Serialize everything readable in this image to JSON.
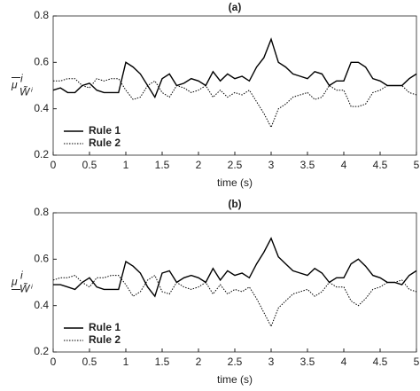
{
  "chart_data": [
    {
      "type": "line",
      "title": "(a)",
      "xlabel": "time (s)",
      "ylabel_symbol": "μ",
      "ylabel_superscript": "i",
      "ylabel_subscript": "W̃ⁱ",
      "ylabel_mark": "overline",
      "x": [
        0,
        0.1,
        0.2,
        0.3,
        0.4,
        0.5,
        0.6,
        0.7,
        0.8,
        0.9,
        1,
        1.1,
        1.2,
        1.3,
        1.4,
        1.5,
        1.6,
        1.7,
        1.8,
        1.9,
        2,
        2.1,
        2.2,
        2.3,
        2.4,
        2.5,
        2.6,
        2.7,
        2.8,
        2.9,
        3,
        3.1,
        3.2,
        3.3,
        3.4,
        3.5,
        3.6,
        3.7,
        3.8,
        3.9,
        4,
        4.1,
        4.2,
        4.3,
        4.4,
        4.5,
        4.6,
        4.7,
        4.8,
        4.9,
        5
      ],
      "series": [
        {
          "name": "Rule 1",
          "color": "#000000",
          "dash": "solid",
          "values": [
            0.48,
            0.49,
            0.47,
            0.47,
            0.5,
            0.51,
            0.48,
            0.47,
            0.47,
            0.47,
            0.6,
            0.58,
            0.55,
            0.5,
            0.45,
            0.53,
            0.55,
            0.5,
            0.51,
            0.53,
            0.52,
            0.5,
            0.56,
            0.52,
            0.55,
            0.53,
            0.54,
            0.52,
            0.58,
            0.62,
            0.7,
            0.6,
            0.58,
            0.55,
            0.54,
            0.53,
            0.56,
            0.55,
            0.5,
            0.52,
            0.52,
            0.6,
            0.6,
            0.58,
            0.53,
            0.52,
            0.5,
            0.5,
            0.5,
            0.53,
            0.55
          ]
        },
        {
          "name": "Rule 2",
          "color": "#000000",
          "dash": "dotted",
          "values": [
            0.52,
            0.52,
            0.53,
            0.53,
            0.5,
            0.49,
            0.53,
            0.52,
            0.53,
            0.53,
            0.48,
            0.44,
            0.45,
            0.5,
            0.52,
            0.47,
            0.45,
            0.5,
            0.49,
            0.47,
            0.48,
            0.5,
            0.45,
            0.48,
            0.45,
            0.47,
            0.46,
            0.48,
            0.43,
            0.38,
            0.32,
            0.4,
            0.42,
            0.45,
            0.46,
            0.47,
            0.44,
            0.45,
            0.5,
            0.48,
            0.48,
            0.41,
            0.41,
            0.42,
            0.47,
            0.48,
            0.5,
            0.5,
            0.5,
            0.47,
            0.46
          ]
        }
      ],
      "xlim": [
        0,
        5
      ],
      "xticks": [
        0,
        0.5,
        1,
        1.5,
        2,
        2.5,
        3,
        3.5,
        4,
        4.5,
        5
      ],
      "ylim": [
        0.2,
        0.8
      ],
      "yticks": [
        0.2,
        0.4,
        0.6,
        0.8
      ],
      "legend": "lower left",
      "grid": false
    },
    {
      "type": "line",
      "title": "(b)",
      "xlabel": "time (s)",
      "ylabel_symbol": "μ",
      "ylabel_superscript": "i",
      "ylabel_subscript": "W̃ⁱ",
      "ylabel_mark": "underline",
      "x": [
        0,
        0.1,
        0.2,
        0.3,
        0.4,
        0.5,
        0.6,
        0.7,
        0.8,
        0.9,
        1,
        1.1,
        1.2,
        1.3,
        1.4,
        1.5,
        1.6,
        1.7,
        1.8,
        1.9,
        2,
        2.1,
        2.2,
        2.3,
        2.4,
        2.5,
        2.6,
        2.7,
        2.8,
        2.9,
        3,
        3.1,
        3.2,
        3.3,
        3.4,
        3.5,
        3.6,
        3.7,
        3.8,
        3.9,
        4,
        4.1,
        4.2,
        4.3,
        4.4,
        4.5,
        4.6,
        4.7,
        4.8,
        4.9,
        5
      ],
      "series": [
        {
          "name": "Rule 1",
          "color": "#000000",
          "dash": "solid",
          "values": [
            0.49,
            0.49,
            0.48,
            0.47,
            0.5,
            0.52,
            0.48,
            0.47,
            0.47,
            0.47,
            0.59,
            0.57,
            0.54,
            0.48,
            0.44,
            0.54,
            0.55,
            0.5,
            0.52,
            0.53,
            0.52,
            0.5,
            0.56,
            0.51,
            0.55,
            0.53,
            0.54,
            0.52,
            0.58,
            0.63,
            0.69,
            0.61,
            0.58,
            0.55,
            0.54,
            0.53,
            0.56,
            0.54,
            0.5,
            0.52,
            0.52,
            0.58,
            0.6,
            0.57,
            0.53,
            0.52,
            0.5,
            0.5,
            0.49,
            0.53,
            0.55
          ]
        },
        {
          "name": "Rule 2",
          "color": "#000000",
          "dash": "dotted",
          "values": [
            0.51,
            0.52,
            0.52,
            0.53,
            0.5,
            0.48,
            0.52,
            0.52,
            0.53,
            0.53,
            0.49,
            0.44,
            0.46,
            0.51,
            0.53,
            0.46,
            0.45,
            0.5,
            0.48,
            0.47,
            0.48,
            0.5,
            0.45,
            0.49,
            0.45,
            0.47,
            0.46,
            0.48,
            0.43,
            0.37,
            0.31,
            0.39,
            0.42,
            0.45,
            0.46,
            0.47,
            0.44,
            0.46,
            0.5,
            0.48,
            0.48,
            0.42,
            0.4,
            0.43,
            0.47,
            0.48,
            0.5,
            0.5,
            0.51,
            0.47,
            0.46
          ]
        }
      ],
      "xlim": [
        0,
        5
      ],
      "xticks": [
        0,
        0.5,
        1,
        1.5,
        2,
        2.5,
        3,
        3.5,
        4,
        4.5,
        5
      ],
      "ylim": [
        0.2,
        0.8
      ],
      "yticks": [
        0.2,
        0.4,
        0.6,
        0.8
      ],
      "legend": "lower left",
      "grid": false
    }
  ]
}
